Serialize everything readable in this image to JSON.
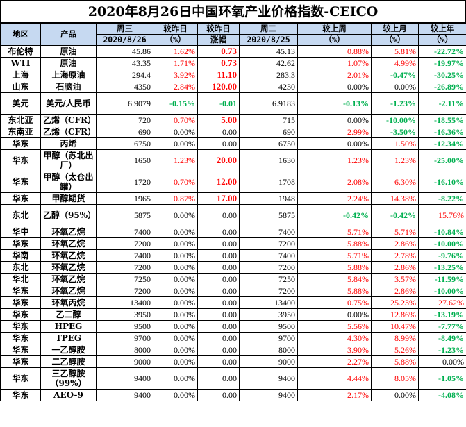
{
  "title": "2020年8月26日中国环氧产业价格指数-CEICO",
  "headers": {
    "row1": [
      "地区",
      "产品",
      "周三",
      "较昨日",
      "较昨日",
      "周二",
      "较上周",
      "较上月",
      "较上年"
    ],
    "row2": [
      "2020/8/26",
      "（%）",
      "涨幅",
      "2020/8/25",
      "（%）",
      "（%）",
      "（%）"
    ]
  },
  "rows": [
    {
      "region": "布伦特",
      "product": "原油",
      "wed": "45.86",
      "pct": "1.62%",
      "chg": "0.73",
      "tue": "45.13",
      "wk": "0.88%",
      "mo": "5.81%",
      "yr": "-22.72%",
      "pctColor": "red",
      "chgColor": "red",
      "wkColor": "red",
      "moColor": "red",
      "yrColor": "green",
      "tall": false
    },
    {
      "region": "WTI",
      "product": "原油",
      "wed": "43.35",
      "pct": "1.71%",
      "chg": "0.73",
      "tue": "42.62",
      "wk": "1.07%",
      "mo": "4.99%",
      "yr": "-19.97%",
      "pctColor": "red",
      "chgColor": "red",
      "wkColor": "red",
      "moColor": "red",
      "yrColor": "green",
      "tall": false
    },
    {
      "region": "上海",
      "product": "上海原油",
      "wed": "294.4",
      "pct": "3.92%",
      "chg": "11.10",
      "tue": "283.3",
      "wk": "2.01%",
      "mo": "-0.47%",
      "yr": "-30.25%",
      "pctColor": "red",
      "chgColor": "red",
      "wkColor": "red",
      "moColor": "green",
      "yrColor": "green",
      "tall": false
    },
    {
      "region": "山东",
      "product": "石脑油",
      "wed": "4350",
      "pct": "2.84%",
      "chg": "120.00",
      "tue": "4230",
      "wk": "0.00%",
      "mo": "0.00%",
      "yr": "-26.89%",
      "pctColor": "red",
      "chgColor": "red",
      "wkColor": "",
      "moColor": "",
      "yrColor": "green",
      "tall": false
    },
    {
      "region": "美元",
      "product": "美元/人民币",
      "wed": "6.9079",
      "pct": "-0.15%",
      "chg": "-0.01",
      "tue": "6.9183",
      "wk": "-0.13%",
      "mo": "-1.23%",
      "yr": "-2.11%",
      "pctColor": "green",
      "chgColor": "green",
      "wkColor": "green",
      "moColor": "green",
      "yrColor": "green",
      "tall": true
    },
    {
      "region": "东北亚",
      "product": "乙烯（CFR）",
      "wed": "720",
      "pct": "0.70%",
      "chg": "5.00",
      "tue": "715",
      "wk": "0.00%",
      "mo": "-10.00%",
      "yr": "-18.55%",
      "pctColor": "red",
      "chgColor": "red",
      "wkColor": "",
      "moColor": "green",
      "yrColor": "green",
      "tall": false
    },
    {
      "region": "东南亚",
      "product": "乙烯（CFR）",
      "wed": "690",
      "pct": "0.00%",
      "chg": "0.00",
      "tue": "690",
      "wk": "2.99%",
      "mo": "-3.50%",
      "yr": "-16.36%",
      "pctColor": "",
      "chgColor": "",
      "wkColor": "red",
      "moColor": "green",
      "yrColor": "green",
      "tall": false
    },
    {
      "region": "华东",
      "product": "丙烯",
      "wed": "6750",
      "pct": "0.00%",
      "chg": "0.00",
      "tue": "6750",
      "wk": "0.00%",
      "mo": "1.50%",
      "yr": "-12.34%",
      "pctColor": "",
      "chgColor": "",
      "wkColor": "",
      "moColor": "red",
      "yrColor": "green",
      "tall": false
    },
    {
      "region": "华东",
      "product": "甲醇（苏北出厂）",
      "wed": "1650",
      "pct": "1.23%",
      "chg": "20.00",
      "tue": "1630",
      "wk": "1.23%",
      "mo": "1.23%",
      "yr": "-25.00%",
      "pctColor": "red",
      "chgColor": "red",
      "wkColor": "red",
      "moColor": "red",
      "yrColor": "green",
      "tall": true
    },
    {
      "region": "华东",
      "product": "甲醇（太仓出罐）",
      "wed": "1720",
      "pct": "0.70%",
      "chg": "12.00",
      "tue": "1708",
      "wk": "2.08%",
      "mo": "6.30%",
      "yr": "-16.10%",
      "pctColor": "red",
      "chgColor": "red",
      "wkColor": "red",
      "moColor": "red",
      "yrColor": "green",
      "tall": true
    },
    {
      "region": "华东",
      "product": "甲醇期货",
      "wed": "1965",
      "pct": "0.87%",
      "chg": "17.00",
      "tue": "1948",
      "wk": "2.24%",
      "mo": "14.38%",
      "yr": "-8.22%",
      "pctColor": "red",
      "chgColor": "red",
      "wkColor": "red",
      "moColor": "red",
      "yrColor": "green",
      "tall": false
    },
    {
      "region": "东北",
      "product": "乙醇（95%）",
      "wed": "5875",
      "pct": "0.00%",
      "chg": "0.00",
      "tue": "5875",
      "wk": "-0.42%",
      "mo": "-0.42%",
      "yr": "15.76%",
      "pctColor": "",
      "chgColor": "",
      "wkColor": "green",
      "moColor": "green",
      "yrColor": "red",
      "tall": true
    },
    {
      "region": "华中",
      "product": "环氧乙烷",
      "wed": "7400",
      "pct": "0.00%",
      "chg": "0.00",
      "tue": "7400",
      "wk": "5.71%",
      "mo": "5.71%",
      "yr": "-10.84%",
      "pctColor": "",
      "chgColor": "",
      "wkColor": "red",
      "moColor": "red",
      "yrColor": "green",
      "tall": false
    },
    {
      "region": "华东",
      "product": "环氧乙烷",
      "wed": "7200",
      "pct": "0.00%",
      "chg": "0.00",
      "tue": "7200",
      "wk": "5.88%",
      "mo": "2.86%",
      "yr": "-10.00%",
      "pctColor": "",
      "chgColor": "",
      "wkColor": "red",
      "moColor": "red",
      "yrColor": "green",
      "tall": false
    },
    {
      "region": "华南",
      "product": "环氧乙烷",
      "wed": "7400",
      "pct": "0.00%",
      "chg": "0.00",
      "tue": "7400",
      "wk": "5.71%",
      "mo": "2.78%",
      "yr": "-9.76%",
      "pctColor": "",
      "chgColor": "",
      "wkColor": "red",
      "moColor": "red",
      "yrColor": "green",
      "tall": false
    },
    {
      "region": "东北",
      "product": "环氧乙烷",
      "wed": "7200",
      "pct": "0.00%",
      "chg": "0.00",
      "tue": "7200",
      "wk": "5.88%",
      "mo": "2.86%",
      "yr": "-13.25%",
      "pctColor": "",
      "chgColor": "",
      "wkColor": "red",
      "moColor": "red",
      "yrColor": "green",
      "tall": false
    },
    {
      "region": "华北",
      "product": "环氧乙烷",
      "wed": "7250",
      "pct": "0.00%",
      "chg": "0.00",
      "tue": "7250",
      "wk": "5.84%",
      "mo": "3.57%",
      "yr": "-11.59%",
      "pctColor": "",
      "chgColor": "",
      "wkColor": "red",
      "moColor": "red",
      "yrColor": "green",
      "tall": false
    },
    {
      "region": "华东",
      "product": "环氧乙烷",
      "wed": "7200",
      "pct": "0.00%",
      "chg": "0.00",
      "tue": "7200",
      "wk": "5.88%",
      "mo": "2.86%",
      "yr": "-10.00%",
      "pctColor": "",
      "chgColor": "",
      "wkColor": "red",
      "moColor": "red",
      "yrColor": "green",
      "tall": false
    },
    {
      "region": "华东",
      "product": "环氧丙烷",
      "wed": "13400",
      "pct": "0.00%",
      "chg": "0.00",
      "tue": "13400",
      "wk": "0.75%",
      "mo": "25.23%",
      "yr": "27.62%",
      "pctColor": "",
      "chgColor": "",
      "wkColor": "red",
      "moColor": "red",
      "yrColor": "red",
      "tall": false
    },
    {
      "region": "华东",
      "product": "乙二醇",
      "wed": "3950",
      "pct": "0.00%",
      "chg": "0.00",
      "tue": "3950",
      "wk": "0.00%",
      "mo": "12.86%",
      "yr": "-13.19%",
      "pctColor": "",
      "chgColor": "",
      "wkColor": "",
      "moColor": "red",
      "yrColor": "green",
      "tall": false
    },
    {
      "region": "华东",
      "product": "HPEG",
      "wed": "9500",
      "pct": "0.00%",
      "chg": "0.00",
      "tue": "9500",
      "wk": "5.56%",
      "mo": "10.47%",
      "yr": "-7.77%",
      "pctColor": "",
      "chgColor": "",
      "wkColor": "red",
      "moColor": "red",
      "yrColor": "green",
      "tall": false
    },
    {
      "region": "华东",
      "product": "TPEG",
      "wed": "9700",
      "pct": "0.00%",
      "chg": "0.00",
      "tue": "9700",
      "wk": "4.30%",
      "mo": "8.99%",
      "yr": "-8.49%",
      "pctColor": "",
      "chgColor": "",
      "wkColor": "red",
      "moColor": "red",
      "yrColor": "green",
      "tall": false
    },
    {
      "region": "华东",
      "product": "一乙醇胺",
      "wed": "8000",
      "pct": "0.00%",
      "chg": "0.00",
      "tue": "8000",
      "wk": "3.90%",
      "mo": "5.26%",
      "yr": "-1.23%",
      "pctColor": "",
      "chgColor": "",
      "wkColor": "red",
      "moColor": "red",
      "yrColor": "green",
      "tall": false
    },
    {
      "region": "华东",
      "product": "二乙醇胺",
      "wed": "9000",
      "pct": "0.00%",
      "chg": "0.00",
      "tue": "9000",
      "wk": "2.27%",
      "mo": "5.88%",
      "yr": "0.00%",
      "pctColor": "",
      "chgColor": "",
      "wkColor": "red",
      "moColor": "red",
      "yrColor": "",
      "tall": false
    },
    {
      "region": "华东",
      "product": "三乙醇胺（99%）",
      "wed": "9400",
      "pct": "0.00%",
      "chg": "0.00",
      "tue": "9400",
      "wk": "4.44%",
      "mo": "8.05%",
      "yr": "-1.05%",
      "pctColor": "",
      "chgColor": "",
      "wkColor": "red",
      "moColor": "red",
      "yrColor": "green",
      "tall": true
    },
    {
      "region": "华东",
      "product": "AEO-9",
      "wed": "9400",
      "pct": "0.00%",
      "chg": "0.00",
      "tue": "9400",
      "wk": "2.17%",
      "mo": "0.00%",
      "yr": "-4.08%",
      "pctColor": "",
      "chgColor": "",
      "wkColor": "red",
      "moColor": "",
      "yrColor": "green",
      "tall": false
    }
  ]
}
